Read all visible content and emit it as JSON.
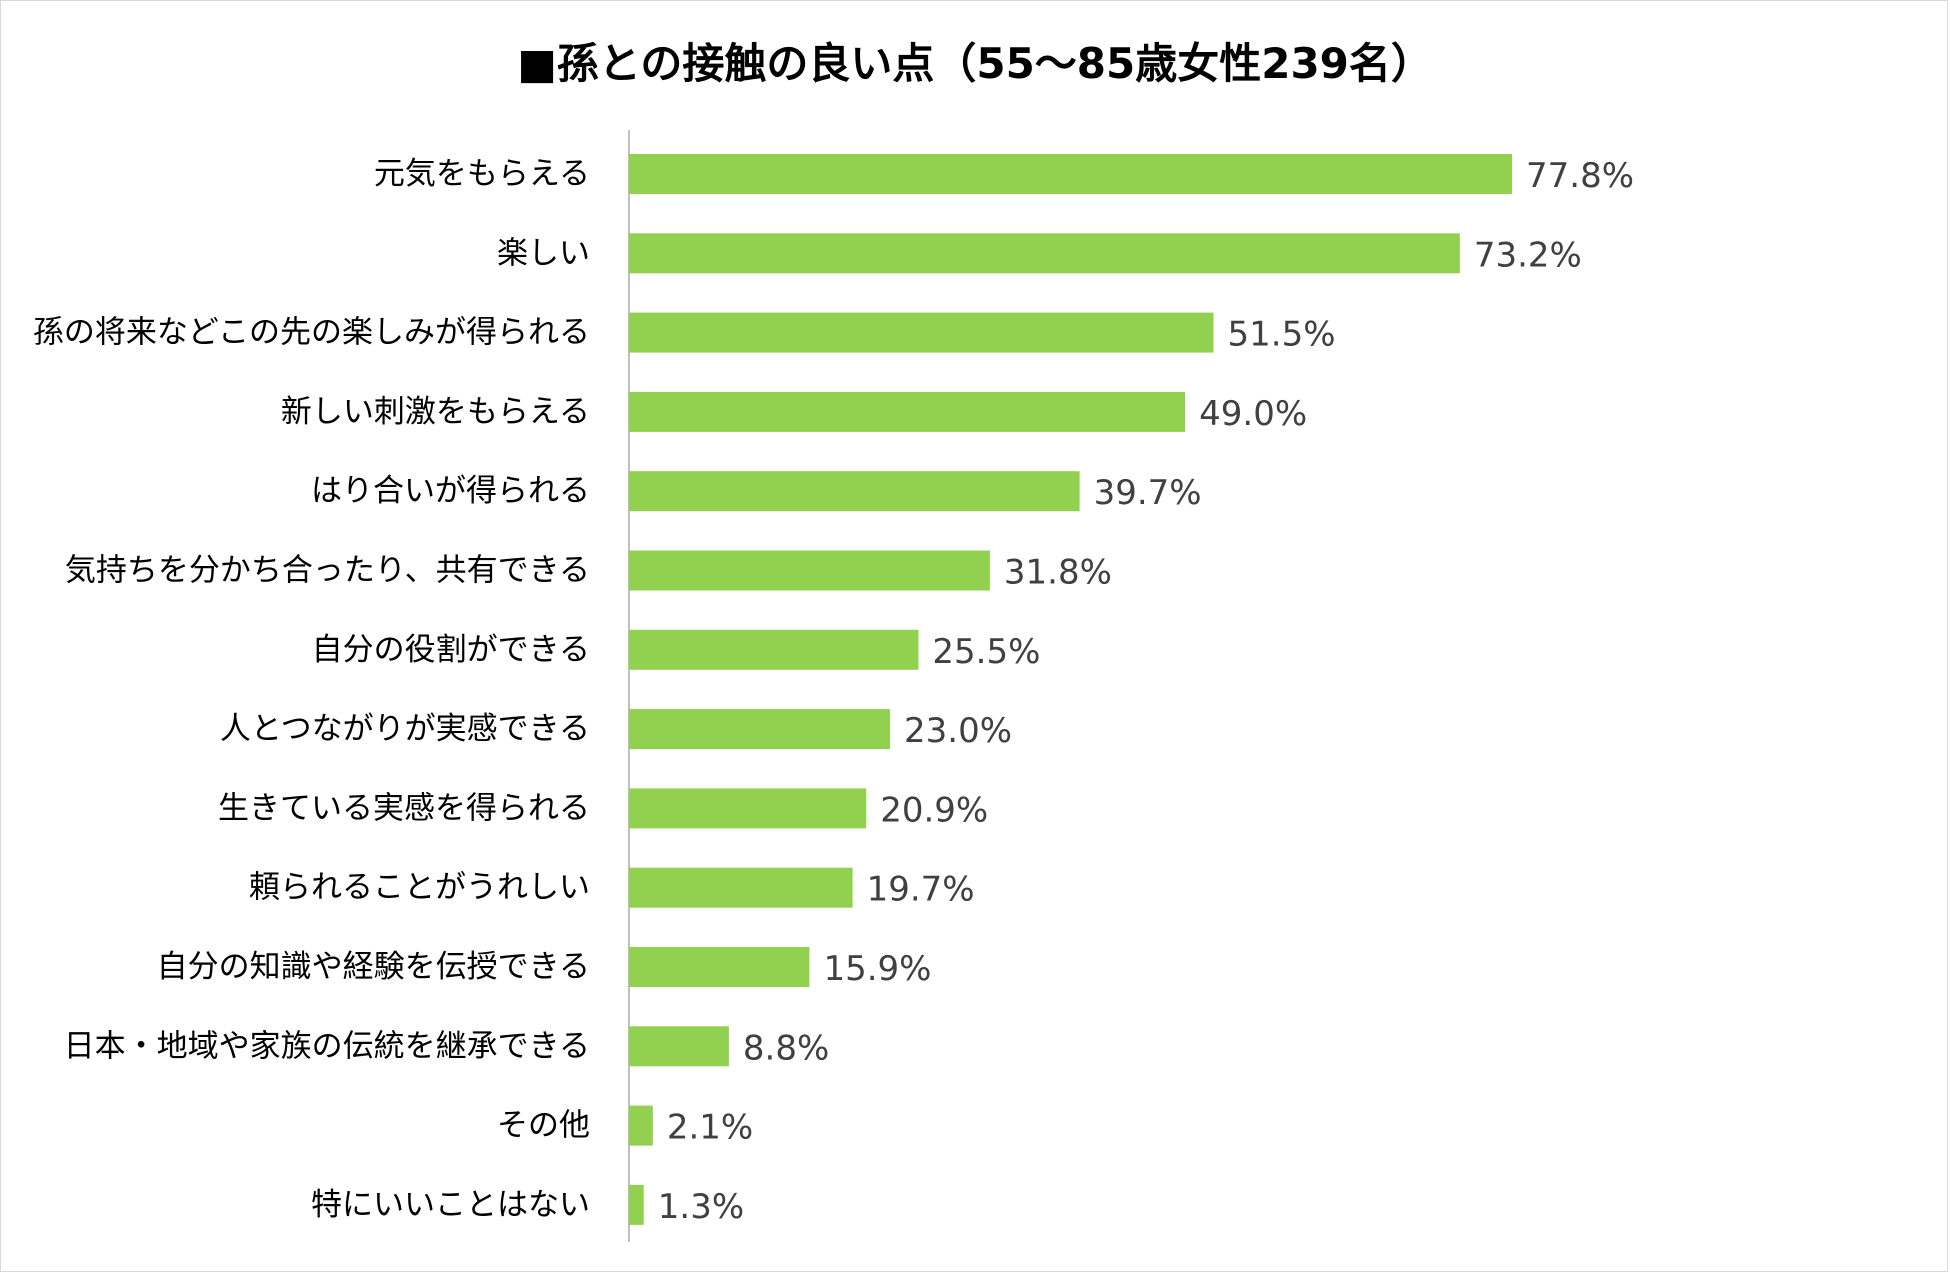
{
  "chart_data": {
    "type": "bar",
    "orientation": "horizontal",
    "title": "■孫との接触の良い点（55～85歳女性239名）",
    "xlabel": "",
    "ylabel": "",
    "xlim": [
      0,
      100
    ],
    "grid": false,
    "legend": "none",
    "bar_color": "#92d050",
    "categories": [
      "元気をもらえる",
      "楽しい",
      "孫の将来などこの先の楽しみが得られる",
      "新しい刺激をもらえる",
      "はり合いが得られる",
      "気持ちを分かち合ったり、共有できる",
      "自分の役割ができる",
      "人とつながりが実感できる",
      "生きている実感を得られる",
      "頼られることがうれしい",
      "自分の知識や経験を伝授できる",
      "日本・地域や家族の伝統を継承できる",
      "その他",
      "特にいいことはない"
    ],
    "values": [
      77.8,
      73.2,
      51.5,
      49.0,
      39.7,
      31.8,
      25.5,
      23.0,
      20.9,
      19.7,
      15.9,
      8.8,
      2.1,
      1.3
    ],
    "value_labels": [
      "77.8%",
      "73.2%",
      "51.5%",
      "49.0%",
      "39.7%",
      "31.8%",
      "25.5%",
      "23.0%",
      "20.9%",
      "19.7%",
      "15.9%",
      "8.8%",
      "2.1%",
      "1.3%"
    ]
  }
}
